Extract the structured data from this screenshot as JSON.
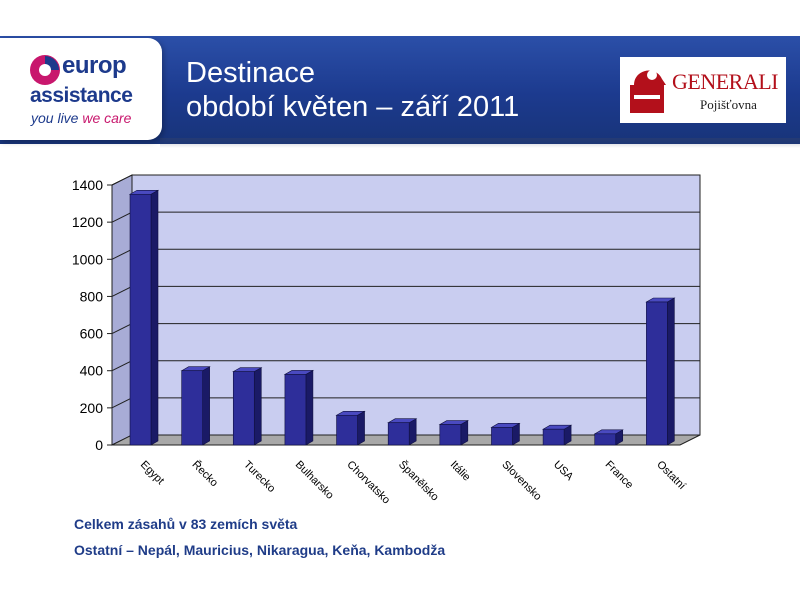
{
  "header": {
    "title_line1": "Destinace",
    "title_line2": "období květen – září 2011",
    "brand_line1": "europ",
    "brand_line2": "assistance",
    "brand_tagline_a": "you live",
    "brand_tagline_b": "we care",
    "partner_name": "GENERALI",
    "partner_sub": "Pojišťovna"
  },
  "chart_data": {
    "type": "bar",
    "categories": [
      "Egypt",
      "Řecko",
      "Turecko",
      "Bulharsko",
      "Chorvatsko",
      "Španělsko",
      "Itálie",
      "Slovensko",
      "USA",
      "France",
      "Ostatní"
    ],
    "values": [
      1350,
      400,
      395,
      380,
      160,
      120,
      110,
      95,
      85,
      60,
      770
    ],
    "ylim": [
      0,
      1400
    ],
    "yticks": [
      0,
      200,
      400,
      600,
      800,
      1000,
      1200,
      1400
    ],
    "grid": true,
    "legend": "none",
    "colors": {
      "bar_front": "#2e2e9a",
      "bar_side": "#1a1a66",
      "bar_top": "#4a4ac0",
      "wall": "#c9cdf0",
      "floor": "#a8a8a8"
    }
  },
  "footer": {
    "line1": "Celkem zásahů v 83 zemích světa",
    "line2": "Ostatní – Nepál, Mauricius, Nikaragua, Keňa, Kambodža"
  }
}
